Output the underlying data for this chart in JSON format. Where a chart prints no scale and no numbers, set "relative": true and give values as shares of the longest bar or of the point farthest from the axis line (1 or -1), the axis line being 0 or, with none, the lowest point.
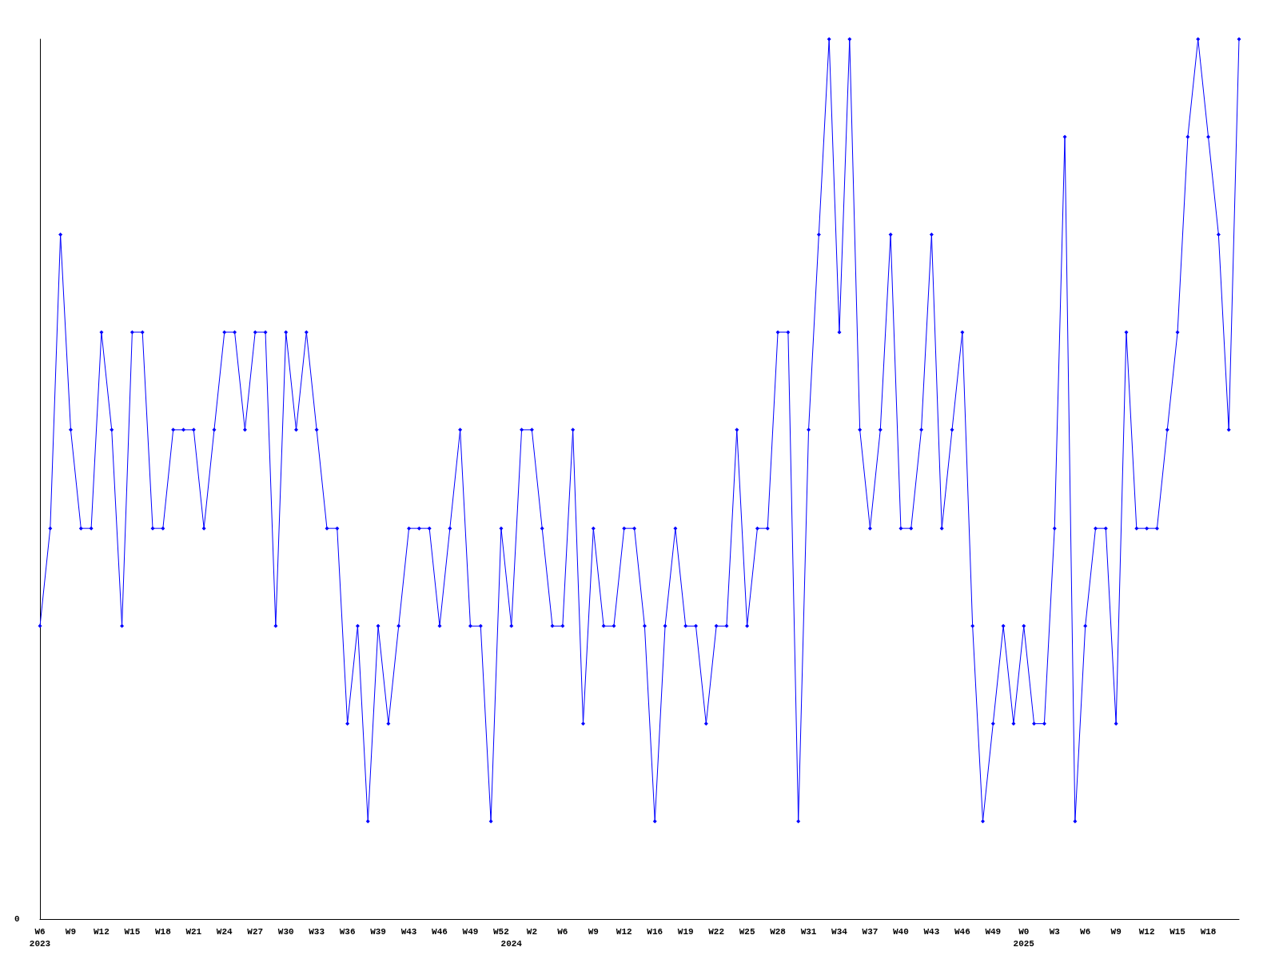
{
  "chart_data": {
    "type": "line",
    "relative": true,
    "color": "#0000ff",
    "marker": "diamond",
    "line_style": "solid",
    "grid": false,
    "categories": [
      "W6\n2023",
      null,
      null,
      "W9",
      null,
      null,
      "W12",
      null,
      null,
      "W15",
      null,
      null,
      "W18",
      null,
      null,
      "W21",
      null,
      null,
      "W24",
      null,
      null,
      "W27",
      null,
      null,
      "W30",
      null,
      null,
      "W33",
      null,
      null,
      "W36",
      null,
      null,
      "W39",
      null,
      null,
      "W43",
      null,
      null,
      "W46",
      null,
      null,
      "W49",
      null,
      null,
      "W52",
      "\n2024",
      null,
      "W2",
      null,
      null,
      "W6",
      null,
      null,
      "W9",
      null,
      null,
      "W12",
      null,
      null,
      "W16",
      null,
      null,
      "W19",
      null,
      null,
      "W22",
      null,
      null,
      "W25",
      null,
      null,
      "W28",
      null,
      null,
      "W31",
      null,
      null,
      "W34",
      null,
      null,
      "W37",
      null,
      null,
      "W40",
      null,
      null,
      "W43",
      null,
      null,
      "W46",
      null,
      null,
      "W49",
      null,
      null,
      "W0\n2025",
      null,
      null,
      "W3",
      null,
      null,
      "W6",
      null,
      null,
      "W9",
      null,
      null,
      "W12",
      null,
      null,
      "W15",
      null,
      null,
      "W18",
      null,
      null,
      null
    ],
    "values": [
      0.333,
      0.444,
      0.778,
      0.556,
      0.444,
      0.444,
      0.667,
      0.556,
      0.333,
      0.667,
      0.667,
      0.444,
      0.444,
      0.556,
      0.556,
      0.556,
      0.444,
      0.556,
      0.667,
      0.667,
      0.556,
      0.667,
      0.667,
      0.333,
      0.667,
      0.556,
      0.667,
      0.556,
      0.444,
      0.444,
      0.222,
      0.333,
      0.111,
      0.333,
      0.222,
      0.333,
      0.444,
      0.444,
      0.444,
      0.333,
      0.444,
      0.556,
      0.333,
      0.333,
      0.111,
      0.444,
      0.333,
      0.556,
      0.556,
      0.444,
      0.333,
      0.333,
      0.556,
      0.222,
      0.444,
      0.333,
      0.333,
      0.444,
      0.444,
      0.333,
      0.111,
      0.333,
      0.444,
      0.333,
      0.333,
      0.222,
      0.333,
      0.333,
      0.556,
      0.333,
      0.444,
      0.444,
      0.667,
      0.667,
      0.111,
      0.556,
      0.778,
      1,
      0.667,
      1,
      0.556,
      0.444,
      0.556,
      0.778,
      0.444,
      0.444,
      0.556,
      0.778,
      0.444,
      0.556,
      0.667,
      0.333,
      0.111,
      0.222,
      0.333,
      0.222,
      0.333,
      0.222,
      0.222,
      0.444,
      0.889,
      0.111,
      0.333,
      0.444,
      0.444,
      0.222,
      0.667,
      0.444,
      0.444,
      0.444,
      0.556,
      0.667,
      0.889,
      1,
      0.889,
      0.778,
      0.556,
      1
    ],
    "annotations": [
      "0"
    ]
  }
}
